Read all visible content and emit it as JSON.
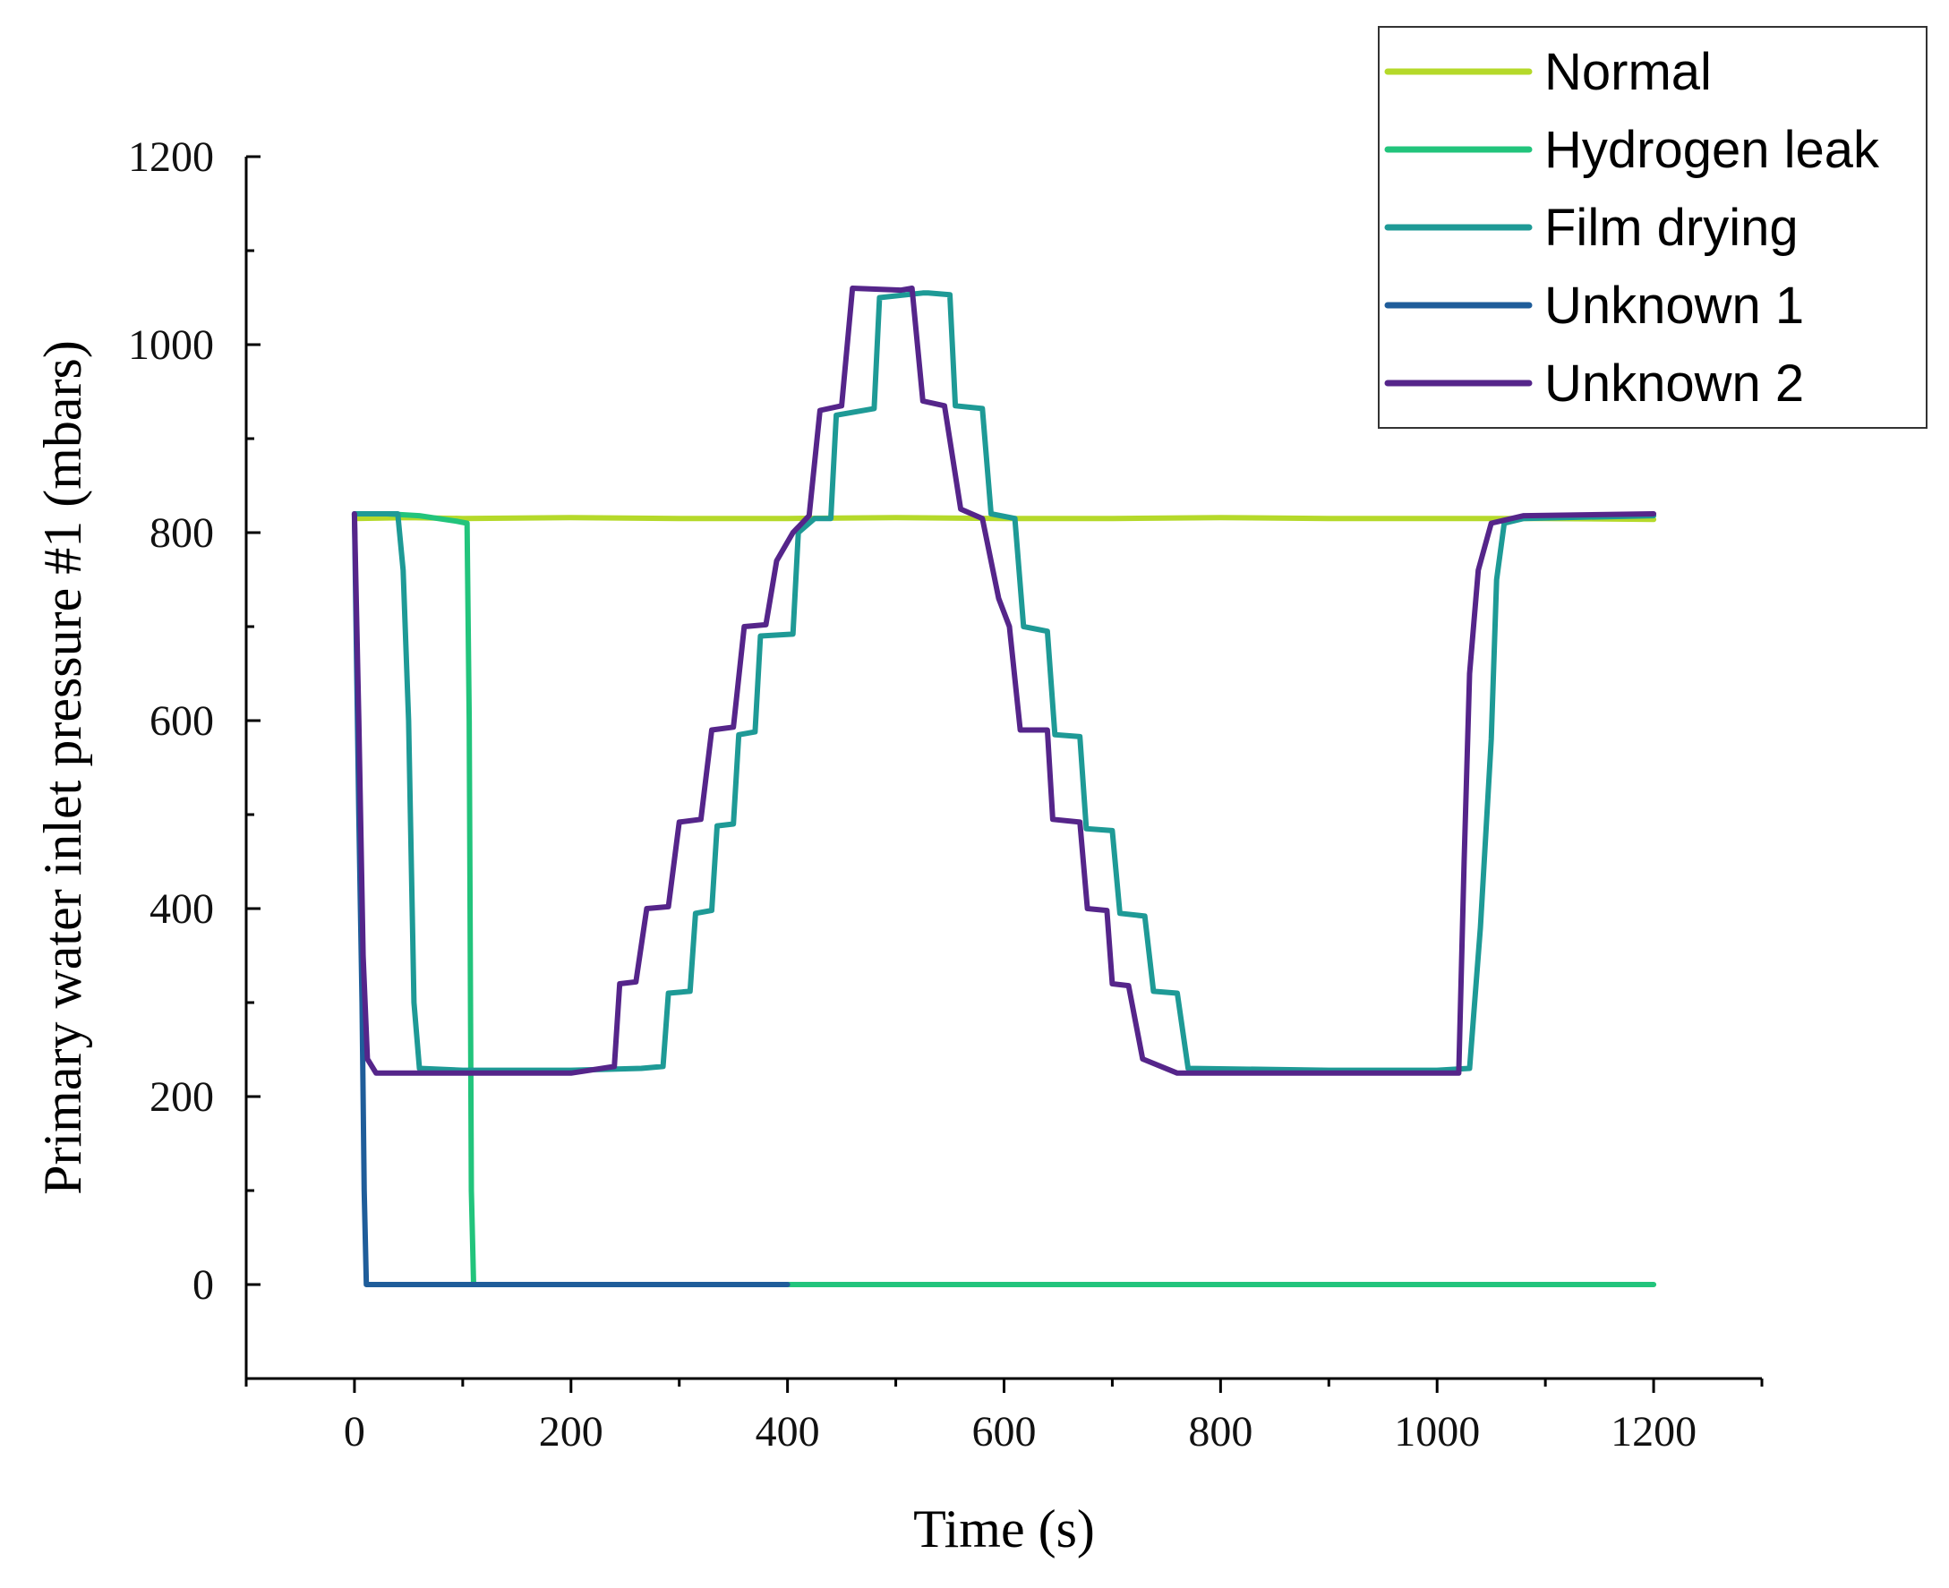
{
  "chart_data": {
    "type": "line",
    "title": "",
    "xlabel": "Time (s)",
    "ylabel": "Primary water inlet pressure #1 (mbars)",
    "xlim": [
      -100,
      1300
    ],
    "ylim": [
      -100,
      1200
    ],
    "xticks": [
      0,
      200,
      400,
      600,
      800,
      1000,
      1200
    ],
    "yticks": [
      0,
      200,
      400,
      600,
      800,
      1000,
      1200
    ],
    "grid": false,
    "legend_position": "top-right",
    "series": [
      {
        "name": "Normal",
        "color": "#b5d92a",
        "points": [
          [
            0,
            815
          ],
          [
            50,
            816
          ],
          [
            100,
            815
          ],
          [
            200,
            816
          ],
          [
            300,
            815
          ],
          [
            400,
            815
          ],
          [
            500,
            816
          ],
          [
            600,
            815
          ],
          [
            700,
            815
          ],
          [
            800,
            816
          ],
          [
            900,
            815
          ],
          [
            1000,
            815
          ],
          [
            1100,
            815
          ],
          [
            1200,
            814
          ]
        ]
      },
      {
        "name": "Hydrogen leak",
        "color": "#22c47c",
        "points": [
          [
            0,
            820
          ],
          [
            30,
            820
          ],
          [
            60,
            818
          ],
          [
            95,
            812
          ],
          [
            104,
            810
          ],
          [
            106,
            600
          ],
          [
            108,
            100
          ],
          [
            110,
            0
          ],
          [
            400,
            0
          ],
          [
            800,
            0
          ],
          [
            1200,
            0
          ]
        ]
      },
      {
        "name": "Film drying",
        "color": "#1e9a96",
        "points": [
          [
            0,
            820
          ],
          [
            40,
            820
          ],
          [
            45,
            760
          ],
          [
            50,
            600
          ],
          [
            55,
            300
          ],
          [
            60,
            230
          ],
          [
            100,
            228
          ],
          [
            200,
            228
          ],
          [
            265,
            230
          ],
          [
            285,
            232
          ],
          [
            290,
            310
          ],
          [
            310,
            312
          ],
          [
            315,
            395
          ],
          [
            330,
            398
          ],
          [
            335,
            488
          ],
          [
            350,
            490
          ],
          [
            355,
            585
          ],
          [
            370,
            588
          ],
          [
            375,
            690
          ],
          [
            405,
            692
          ],
          [
            410,
            800
          ],
          [
            425,
            815
          ],
          [
            440,
            815
          ],
          [
            445,
            925
          ],
          [
            480,
            932
          ],
          [
            485,
            1050
          ],
          [
            525,
            1055
          ],
          [
            530,
            1055
          ],
          [
            550,
            1053
          ],
          [
            555,
            935
          ],
          [
            580,
            932
          ],
          [
            588,
            820
          ],
          [
            610,
            815
          ],
          [
            618,
            700
          ],
          [
            640,
            695
          ],
          [
            647,
            585
          ],
          [
            670,
            583
          ],
          [
            676,
            485
          ],
          [
            700,
            483
          ],
          [
            707,
            395
          ],
          [
            730,
            392
          ],
          [
            738,
            312
          ],
          [
            760,
            310
          ],
          [
            770,
            230
          ],
          [
            900,
            228
          ],
          [
            1000,
            228
          ],
          [
            1030,
            230
          ],
          [
            1040,
            380
          ],
          [
            1050,
            580
          ],
          [
            1055,
            750
          ],
          [
            1062,
            810
          ],
          [
            1080,
            815
          ],
          [
            1200,
            818
          ]
        ]
      },
      {
        "name": "Unknown 1",
        "color": "#1f5d9a",
        "points": [
          [
            0,
            820
          ],
          [
            4,
            500
          ],
          [
            7,
            300
          ],
          [
            9,
            100
          ],
          [
            11,
            0
          ],
          [
            50,
            0
          ],
          [
            150,
            0
          ],
          [
            300,
            0
          ],
          [
            400,
            0
          ]
        ]
      },
      {
        "name": "Unknown 2",
        "color": "#55258a",
        "points": [
          [
            0,
            820
          ],
          [
            4,
            600
          ],
          [
            8,
            350
          ],
          [
            12,
            240
          ],
          [
            20,
            225
          ],
          [
            100,
            225
          ],
          [
            200,
            225
          ],
          [
            240,
            232
          ],
          [
            245,
            320
          ],
          [
            260,
            322
          ],
          [
            270,
            400
          ],
          [
            290,
            402
          ],
          [
            300,
            492
          ],
          [
            320,
            495
          ],
          [
            330,
            590
          ],
          [
            350,
            593
          ],
          [
            360,
            700
          ],
          [
            380,
            702
          ],
          [
            390,
            770
          ],
          [
            405,
            800
          ],
          [
            420,
            818
          ],
          [
            430,
            930
          ],
          [
            450,
            935
          ],
          [
            460,
            1060
          ],
          [
            505,
            1058
          ],
          [
            515,
            1060
          ],
          [
            525,
            940
          ],
          [
            545,
            935
          ],
          [
            560,
            825
          ],
          [
            580,
            815
          ],
          [
            595,
            730
          ],
          [
            605,
            700
          ],
          [
            615,
            590
          ],
          [
            640,
            590
          ],
          [
            645,
            495
          ],
          [
            670,
            492
          ],
          [
            677,
            400
          ],
          [
            695,
            398
          ],
          [
            700,
            320
          ],
          [
            715,
            318
          ],
          [
            728,
            240
          ],
          [
            760,
            225
          ],
          [
            900,
            225
          ],
          [
            1020,
            225
          ],
          [
            1025,
            450
          ],
          [
            1030,
            650
          ],
          [
            1038,
            760
          ],
          [
            1050,
            810
          ],
          [
            1080,
            818
          ],
          [
            1200,
            820
          ]
        ]
      }
    ]
  }
}
